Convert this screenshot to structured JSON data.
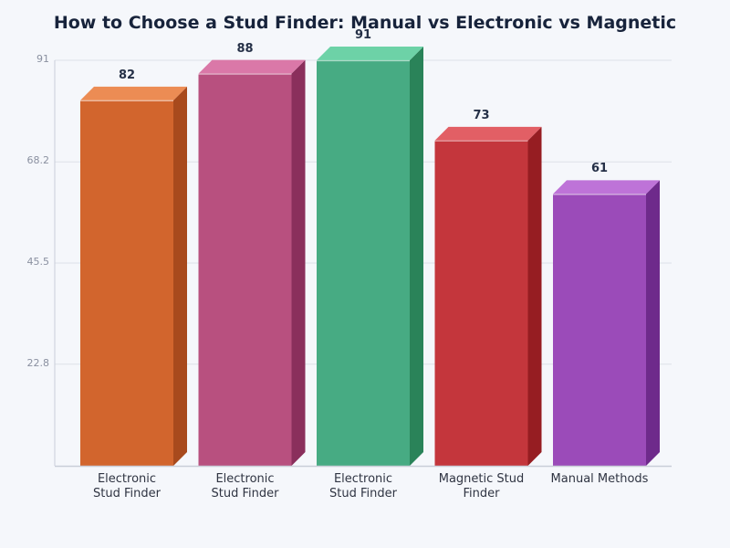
{
  "chart_data": {
    "type": "bar",
    "title": "How to Choose a Stud Finder: Manual vs Electronic vs Magnetic",
    "xlabel": "",
    "ylabel": "",
    "categories": [
      "Electronic\nStud Finder",
      "Electronic\nStud Finder",
      "Electronic\nStud Finder",
      "Magnetic Stud\nFinder",
      "Manual Methods"
    ],
    "values": [
      82,
      88,
      91,
      73,
      61
    ],
    "ylim": [
      0,
      91
    ],
    "yticks": [
      "22.8",
      "45.5",
      "68.2",
      "91"
    ],
    "grid": true,
    "legend": false,
    "style": "3d-bar",
    "colors": [
      {
        "front": "#d2652d",
        "top": "#ec8c54",
        "side": "#a84a1d"
      },
      {
        "front": "#b8507f",
        "top": "#da78a8",
        "side": "#8a2f5c"
      },
      {
        "front": "#47ab83",
        "top": "#6dd2a7",
        "side": "#2a8359"
      },
      {
        "front": "#c4363c",
        "top": "#e25f65",
        "side": "#961d22"
      },
      {
        "front": "#9b4bb9",
        "top": "#be73d8",
        "side": "#6e2a8b"
      }
    ]
  }
}
